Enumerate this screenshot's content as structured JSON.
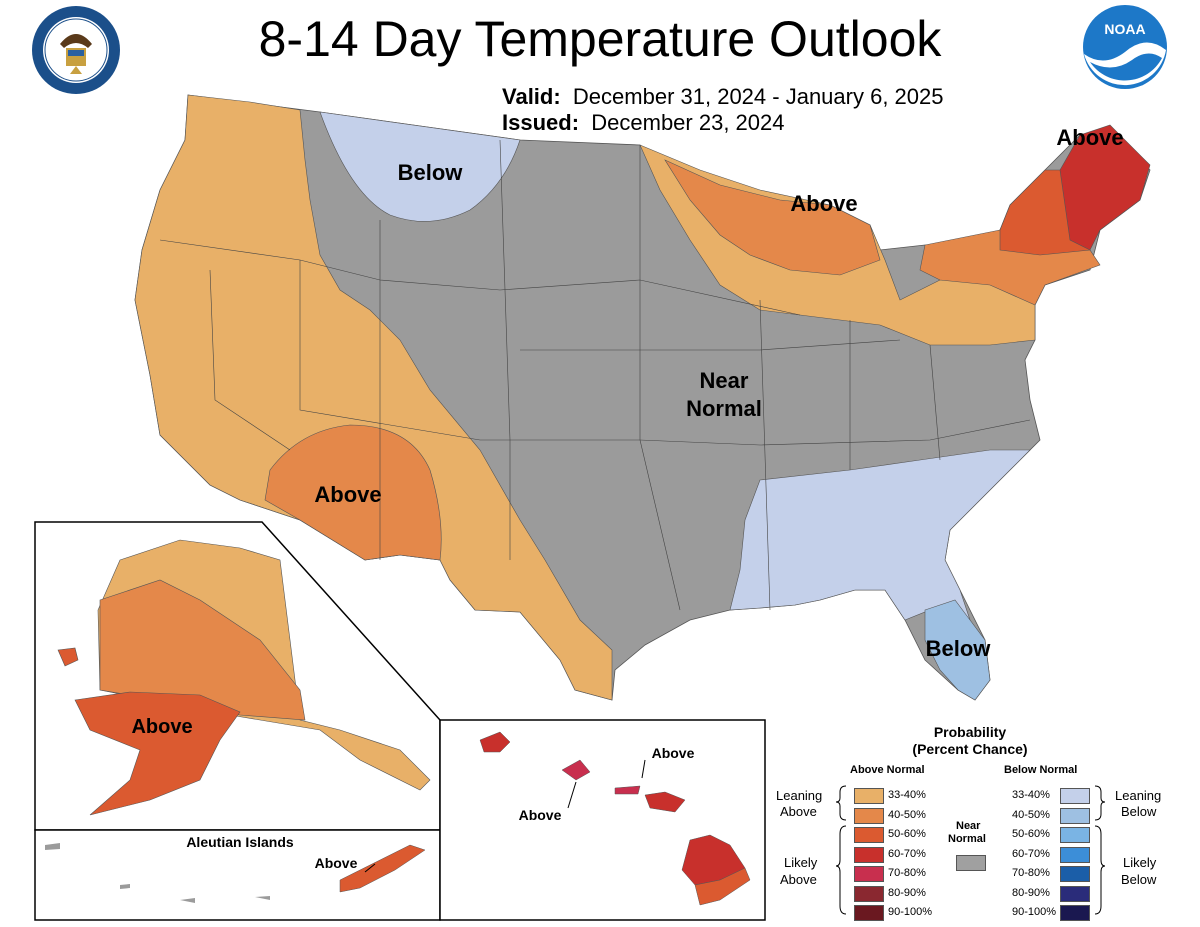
{
  "header": {
    "title": "8-14 Day Temperature Outlook",
    "valid_label": "Valid:",
    "valid_value": "December 31, 2024 - January 6, 2025",
    "issued_label": "Issued:",
    "issued_value": "December 23, 2024",
    "noaa_logo_text": "NOAA"
  },
  "map_labels": {
    "below_north": "Below",
    "above_great_lakes": "Above",
    "above_northeast": "Above",
    "near_normal_1": "Near",
    "near_normal_2": "Normal",
    "above_southwest": "Above",
    "below_florida": "Below",
    "above_alaska": "Above",
    "aleutian_title": "Aleutian Islands",
    "above_aleutian": "Above",
    "above_hawaii_1": "Above",
    "above_hawaii_2": "Above"
  },
  "legend": {
    "title_1": "Probability",
    "title_2": "(Percent Chance)",
    "above_header": "Above Normal",
    "below_header": "Below Normal",
    "near_1": "Near",
    "near_2": "Normal",
    "leaning_above_1": "Leaning",
    "leaning_above_2": "Above",
    "likely_above_1": "Likely",
    "likely_above_2": "Above",
    "leaning_below_1": "Leaning",
    "leaning_below_2": "Below",
    "likely_below_1": "Likely",
    "likely_below_2": "Below",
    "above_classes": [
      {
        "label": "33-40%",
        "color": "#E8B068"
      },
      {
        "label": "40-50%",
        "color": "#E4884A"
      },
      {
        "label": "50-60%",
        "color": "#DB5A30"
      },
      {
        "label": "60-70%",
        "color": "#C8302C"
      },
      {
        "label": "70-80%",
        "color": "#C82F4E"
      },
      {
        "label": "80-90%",
        "color": "#8A2830"
      },
      {
        "label": "90-100%",
        "color": "#6A1820"
      }
    ],
    "below_classes": [
      {
        "label": "33-40%",
        "color": "#C4D0EA"
      },
      {
        "label": "40-50%",
        "color": "#9EC0E2"
      },
      {
        "label": "50-60%",
        "color": "#7AB4E4"
      },
      {
        "label": "60-70%",
        "color": "#3C8ED8"
      },
      {
        "label": "70-80%",
        "color": "#1B5EA8"
      },
      {
        "label": "80-90%",
        "color": "#2A2C7A"
      },
      {
        "label": "90-100%",
        "color": "#1A1850"
      }
    ],
    "near_color": "#A0A0A0"
  },
  "colors": {
    "near_normal": "#9B9B9B",
    "above_33_40": "#E8B068",
    "above_40_50": "#E4884A",
    "above_50_60": "#DB5A30",
    "above_60_70": "#C8302C",
    "below_33_40": "#C4D0EA",
    "below_40_50": "#9EC0E2"
  }
}
